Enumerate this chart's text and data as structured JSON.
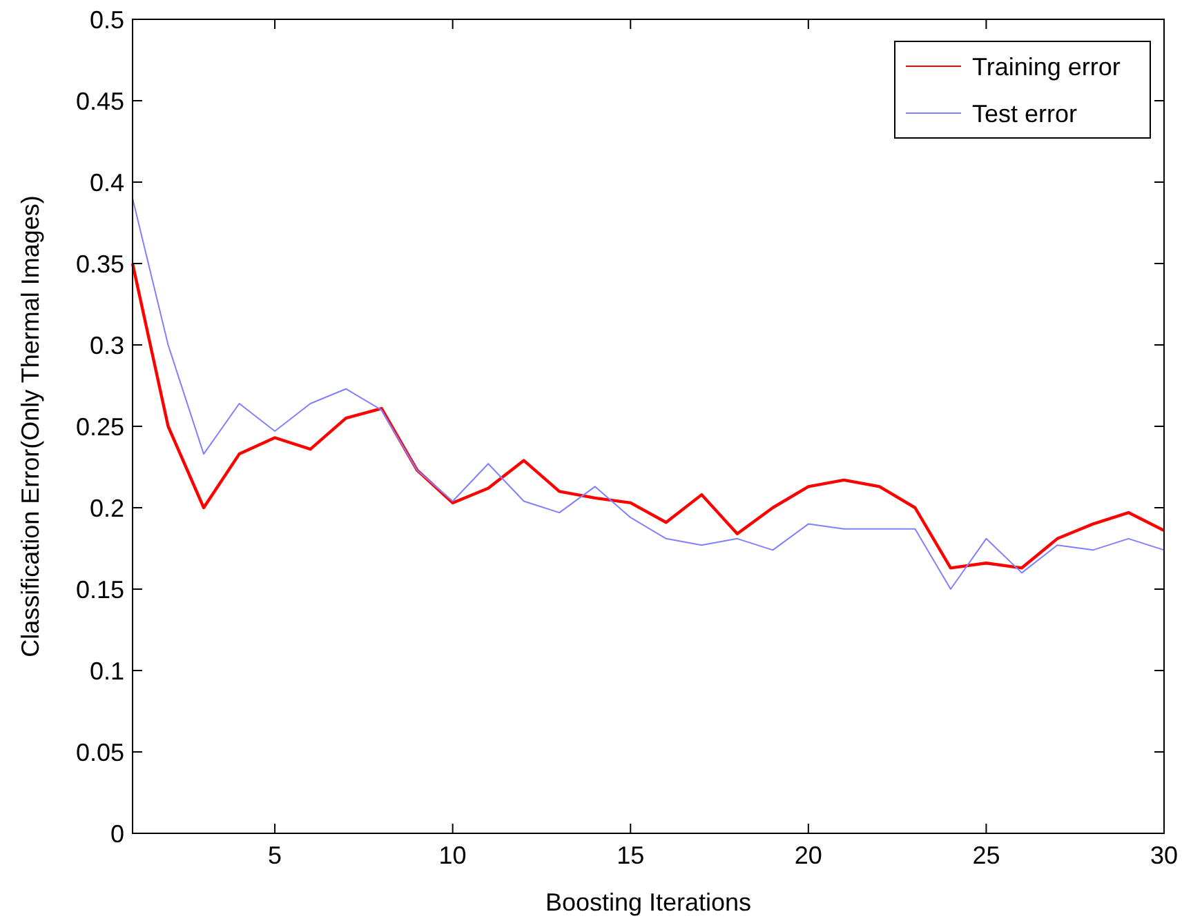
{
  "chart_data": {
    "type": "line",
    "xlabel": "Boosting Iterations",
    "ylabel": "Classification Error(Only Thermal Images)",
    "x": [
      1,
      2,
      3,
      4,
      5,
      6,
      7,
      8,
      9,
      10,
      11,
      12,
      13,
      14,
      15,
      16,
      17,
      18,
      19,
      20,
      21,
      22,
      23,
      24,
      25,
      26,
      27,
      28,
      29,
      30
    ],
    "series": [
      {
        "name": "Training error",
        "color": "#ff0000",
        "values": [
          0.35,
          0.25,
          0.2,
          0.233,
          0.243,
          0.236,
          0.255,
          0.261,
          0.223,
          0.203,
          0.212,
          0.229,
          0.21,
          0.206,
          0.203,
          0.191,
          0.208,
          0.184,
          0.2,
          0.213,
          0.217,
          0.213,
          0.2,
          0.163,
          0.166,
          0.163,
          0.181,
          0.19,
          0.197,
          0.186
        ]
      },
      {
        "name": "Test error",
        "color": "#8080ff",
        "values": [
          0.39,
          0.3,
          0.233,
          0.264,
          0.247,
          0.264,
          0.273,
          0.26,
          0.223,
          0.204,
          0.227,
          0.204,
          0.197,
          0.213,
          0.194,
          0.181,
          0.177,
          0.181,
          0.174,
          0.19,
          0.187,
          0.187,
          0.187,
          0.15,
          0.181,
          0.16,
          0.177,
          0.174,
          0.181,
          0.174
        ]
      }
    ],
    "xlim": [
      1,
      30
    ],
    "xticks": [
      5,
      10,
      15,
      20,
      25,
      30
    ],
    "ylim": [
      0,
      0.5
    ],
    "yticks": [
      0,
      0.05,
      0.1,
      0.15,
      0.2,
      0.25,
      0.3,
      0.35,
      0.4,
      0.45,
      0.5
    ],
    "grid": false,
    "legend": "top right",
    "marker": "none",
    "line_style": "solid"
  }
}
